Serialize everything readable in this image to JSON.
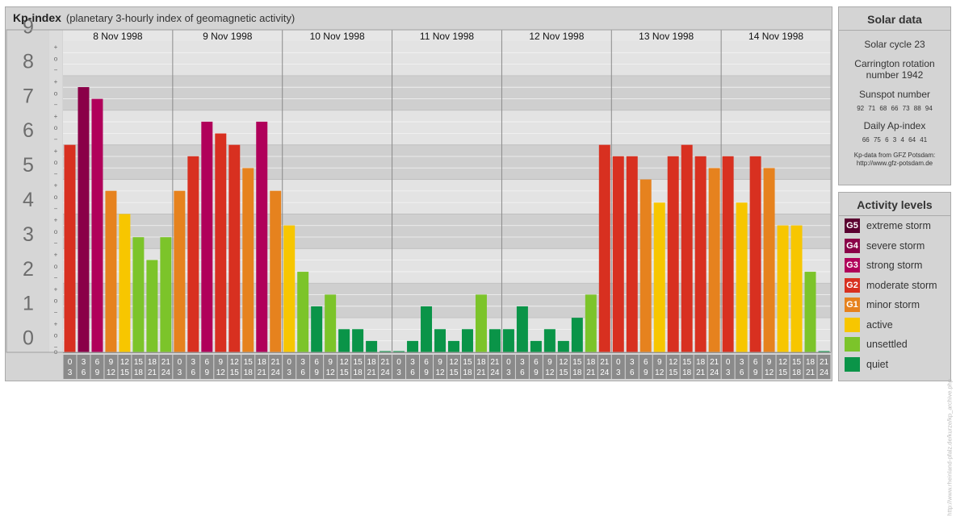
{
  "header": {
    "title": "Kp-index",
    "subtitle": "(planetary 3-hourly index of geomagnetic activity)"
  },
  "chart_data": {
    "type": "bar",
    "ylim": [
      0,
      9
    ],
    "y_tick_labels": [
      "0",
      "1",
      "2",
      "3",
      "4",
      "5",
      "6",
      "7",
      "8",
      "9"
    ],
    "y_minor_labels": [
      "+",
      "o",
      "−"
    ],
    "days": [
      "8 Nov 1998",
      "9 Nov 1998",
      "10 Nov 1998",
      "11 Nov 1998",
      "12 Nov 1998",
      "13 Nov 1998",
      "14 Nov 1998"
    ],
    "interval_starts": [
      "0",
      "3",
      "6",
      "9",
      "12",
      "15",
      "18",
      "21"
    ],
    "interval_ends": [
      "3",
      "6",
      "9",
      "12",
      "15",
      "18",
      "21",
      "24"
    ],
    "values": [
      6.0,
      7.67,
      7.33,
      4.67,
      4.0,
      3.33,
      2.67,
      3.33,
      4.67,
      5.67,
      6.67,
      6.33,
      6.0,
      5.33,
      6.67,
      4.67,
      3.67,
      2.33,
      1.33,
      1.67,
      0.67,
      0.67,
      0.33,
      0.0,
      0.0,
      0.33,
      1.33,
      0.67,
      0.33,
      0.67,
      1.67,
      0.67,
      0.67,
      1.33,
      0.33,
      0.67,
      0.33,
      1.0,
      1.67,
      6.0,
      5.67,
      5.67,
      5.0,
      4.33,
      5.67,
      6.0,
      5.67,
      5.33,
      5.67,
      4.33,
      5.67,
      5.33,
      3.67,
      3.67,
      2.33,
      0.0
    ],
    "colors": {
      "G5": "#5a0030",
      "G4": "#8a0048",
      "G3": "#b0005a",
      "G2": "#d83020",
      "G1": "#e6821e",
      "active": "#f7c600",
      "unsettled": "#7cc42a",
      "quiet": "#0a9448"
    }
  },
  "solar": {
    "title": "Solar data",
    "cycle": "Solar cycle 23",
    "carrington_line1": "Carrington rotation",
    "carrington_line2": "number 1942",
    "sunspot_label": "Sunspot number",
    "sunspot_values": "92  71  68  66  73  88  94",
    "ap_label": "Daily Ap-index",
    "ap_values": "66  75  6  3  4  64  41",
    "source_line1": "Kp-data from GFZ Potsdam:",
    "source_line2": "http://www.gfz-potsdam.de"
  },
  "activity": {
    "title": "Activity levels",
    "levels": [
      {
        "badge": "G5",
        "label": "extreme storm",
        "color": "#5a0030"
      },
      {
        "badge": "G4",
        "label": "severe storm",
        "color": "#8a0048"
      },
      {
        "badge": "G3",
        "label": "strong storm",
        "color": "#b0005a"
      },
      {
        "badge": "G2",
        "label": "moderate storm",
        "color": "#d83020"
      },
      {
        "badge": "G1",
        "label": "minor storm",
        "color": "#e6821e"
      },
      {
        "badge": "",
        "label": "active",
        "color": "#f7c600"
      },
      {
        "badge": "",
        "label": "unsettled",
        "color": "#7cc42a"
      },
      {
        "badge": "",
        "label": "quiet",
        "color": "#0a9448"
      }
    ]
  },
  "credit": "http://www.rheinland-pfalz.de/kurze/kp_archive.php"
}
